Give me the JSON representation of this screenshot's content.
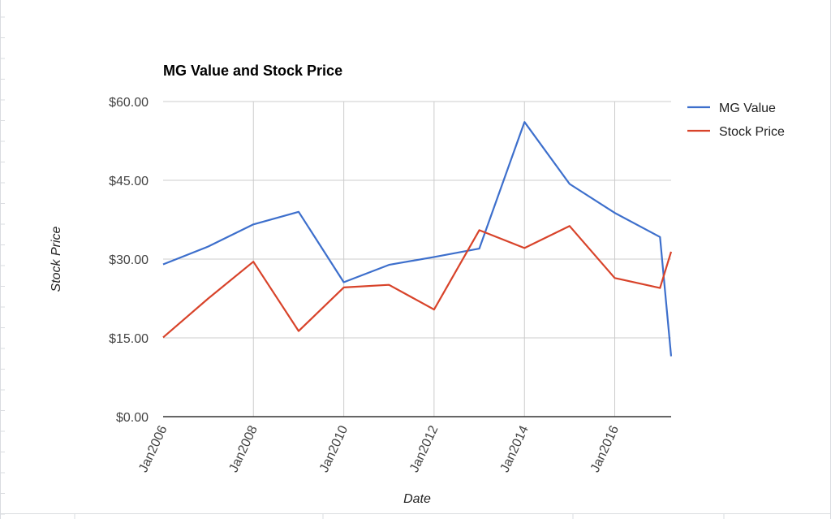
{
  "chart_data": {
    "type": "line",
    "title": "MG Value and Stock Price",
    "xlabel": "Date",
    "ylabel": "Stock Price",
    "ylim": [
      0,
      60
    ],
    "xlim": [
      "2006-01-01",
      "2017-04-01"
    ],
    "y_ticks": [
      0,
      15,
      30,
      45,
      60
    ],
    "y_tick_labels": [
      "$0.00",
      "$15.00",
      "$30.00",
      "$45.00",
      "$60.00"
    ],
    "x_ticks": [
      "2006-01-01",
      "2008-01-01",
      "2010-01-01",
      "2012-01-01",
      "2014-01-01",
      "2016-01-01"
    ],
    "x_tick_labels": [
      "Jan2006",
      "Jan2008",
      "Jan2010",
      "Jan2012",
      "Jan2014",
      "Jan2016"
    ],
    "grid": true,
    "legend": "right",
    "x": [
      "2006-01-01",
      "2007-01-01",
      "2008-01-01",
      "2009-01-01",
      "2010-01-01",
      "2011-01-01",
      "2012-01-01",
      "2013-01-01",
      "2014-01-01",
      "2015-01-01",
      "2016-01-01",
      "2017-01-01",
      "2017-04-01"
    ],
    "series": [
      {
        "name": "MG Value",
        "color": "#3d6fcc",
        "values": [
          29.0,
          32.4,
          36.6,
          39.0,
          25.6,
          28.9,
          30.4,
          32.0,
          56.1,
          44.3,
          38.8,
          34.2,
          11.5
        ]
      },
      {
        "name": "Stock Price",
        "color": "#d8432a",
        "values": [
          15.1,
          22.5,
          29.5,
          16.3,
          24.6,
          25.1,
          20.4,
          35.5,
          32.1,
          36.3,
          26.4,
          24.5,
          31.4
        ]
      }
    ]
  }
}
